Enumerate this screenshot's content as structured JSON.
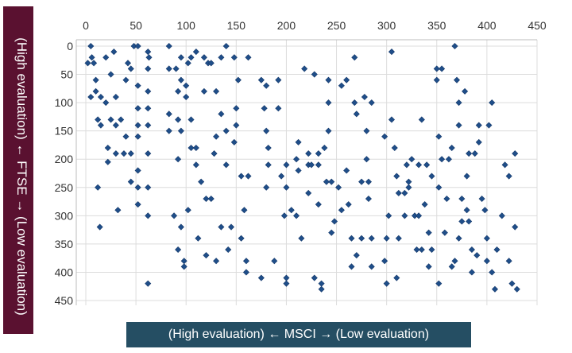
{
  "chart_data": {
    "type": "scatter",
    "title": "",
    "xlabel": "(High evaluation)  ←  MSCI  →  (Low evaluation)",
    "ylabel": "(High evaluation)  ←  FTSE  →  (Low evaluation)",
    "xlim": [
      0,
      450
    ],
    "ylim": [
      0,
      450
    ],
    "y_inverted": true,
    "grid": true,
    "x_ticks": [
      "0",
      "50",
      "100",
      "150",
      "200",
      "250",
      "300",
      "350",
      "400",
      "450"
    ],
    "y_ticks": [
      "0",
      "50",
      "100",
      "150",
      "200",
      "250",
      "300",
      "350",
      "400",
      "450"
    ],
    "marker_color": "#1f4e89",
    "series": [
      {
        "points": [
          [
            2,
            30
          ],
          [
            5,
            0
          ],
          [
            5,
            90
          ],
          [
            6,
            20
          ],
          [
            8,
            30
          ],
          [
            10,
            60
          ],
          [
            10,
            80
          ],
          [
            12,
            250
          ],
          [
            12,
            130
          ],
          [
            14,
            320
          ],
          [
            15,
            140
          ],
          [
            15,
            90
          ],
          [
            20,
            20
          ],
          [
            20,
            100
          ],
          [
            22,
            205
          ],
          [
            22,
            180
          ],
          [
            25,
            50
          ],
          [
            25,
            130
          ],
          [
            28,
            10
          ],
          [
            30,
            90
          ],
          [
            30,
            140
          ],
          [
            30,
            190
          ],
          [
            32,
            290
          ],
          [
            35,
            130
          ],
          [
            38,
            190
          ],
          [
            40,
            160
          ],
          [
            40,
            60
          ],
          [
            42,
            30
          ],
          [
            45,
            40
          ],
          [
            45,
            190
          ],
          [
            45,
            240
          ],
          [
            48,
            0
          ],
          [
            52,
            70
          ],
          [
            52,
            110
          ],
          [
            52,
            140
          ],
          [
            52,
            160
          ],
          [
            52,
            280
          ],
          [
            52,
            220
          ],
          [
            52,
            250
          ],
          [
            52,
            0
          ],
          [
            62,
            10
          ],
          [
            62,
            40
          ],
          [
            62,
            80
          ],
          [
            62,
            110
          ],
          [
            62,
            140
          ],
          [
            62,
            190
          ],
          [
            62,
            250
          ],
          [
            62,
            300
          ],
          [
            62,
            420
          ],
          [
            63,
            20
          ],
          [
            83,
            0
          ],
          [
            83,
            40
          ],
          [
            83,
            120
          ],
          [
            83,
            150
          ],
          [
            88,
            300
          ],
          [
            90,
            40
          ],
          [
            92,
            80
          ],
          [
            92,
            130
          ],
          [
            92,
            200
          ],
          [
            92,
            360
          ],
          [
            95,
            20
          ],
          [
            95,
            60
          ],
          [
            95,
            150
          ],
          [
            95,
            320
          ],
          [
            98,
            380
          ],
          [
            98,
            390
          ],
          [
            100,
            70
          ],
          [
            100,
            90
          ],
          [
            102,
            30
          ],
          [
            102,
            290
          ],
          [
            105,
            20
          ],
          [
            105,
            130
          ],
          [
            105,
            180
          ],
          [
            110,
            10
          ],
          [
            110,
            180
          ],
          [
            110,
            210
          ],
          [
            112,
            340
          ],
          [
            115,
            240
          ],
          [
            118,
            20
          ],
          [
            118,
            80
          ],
          [
            120,
            270
          ],
          [
            120,
            370
          ],
          [
            122,
            30
          ],
          [
            125,
            30
          ],
          [
            125,
            270
          ],
          [
            128,
            190
          ],
          [
            130,
            80
          ],
          [
            130,
            160
          ],
          [
            130,
            380
          ],
          [
            135,
            20
          ],
          [
            135,
            120
          ],
          [
            135,
            320
          ],
          [
            140,
            0
          ],
          [
            140,
            150
          ],
          [
            140,
            210
          ],
          [
            142,
            360
          ],
          [
            145,
            320
          ],
          [
            148,
            20
          ],
          [
            148,
            170
          ],
          [
            150,
            110
          ],
          [
            150,
            140
          ],
          [
            152,
            60
          ],
          [
            155,
            230
          ],
          [
            155,
            340
          ],
          [
            158,
            290
          ],
          [
            160,
            380
          ],
          [
            160,
            400
          ],
          [
            162,
            20
          ],
          [
            162,
            230
          ],
          [
            175,
            60
          ],
          [
            175,
            410
          ],
          [
            178,
            110
          ],
          [
            180,
            70
          ],
          [
            180,
            150
          ],
          [
            180,
            250
          ],
          [
            182,
            180
          ],
          [
            182,
            210
          ],
          [
            188,
            380
          ],
          [
            192,
            60
          ],
          [
            192,
            110
          ],
          [
            195,
            230
          ],
          [
            198,
            300
          ],
          [
            200,
            210
          ],
          [
            200,
            250
          ],
          [
            200,
            410
          ],
          [
            200,
            420
          ],
          [
            205,
            290
          ],
          [
            210,
            200
          ],
          [
            210,
            300
          ],
          [
            212,
            170
          ],
          [
            212,
            220
          ],
          [
            215,
            340
          ],
          [
            218,
            40
          ],
          [
            222,
            190
          ],
          [
            222,
            210
          ],
          [
            222,
            260
          ],
          [
            225,
            210
          ],
          [
            228,
            50
          ],
          [
            228,
            410
          ],
          [
            232,
            190
          ],
          [
            232,
            210
          ],
          [
            232,
            280
          ],
          [
            235,
            420
          ],
          [
            235,
            430
          ],
          [
            238,
            180
          ],
          [
            240,
            240
          ],
          [
            242,
            150
          ],
          [
            242,
            60
          ],
          [
            242,
            100
          ],
          [
            245,
            330
          ],
          [
            245,
            240
          ],
          [
            248,
            310
          ],
          [
            252,
            250
          ],
          [
            255,
            70
          ],
          [
            255,
            290
          ],
          [
            260,
            60
          ],
          [
            260,
            220
          ],
          [
            262,
            280
          ],
          [
            265,
            340
          ],
          [
            265,
            390
          ],
          [
            268,
            100
          ],
          [
            268,
            20
          ],
          [
            270,
            120
          ],
          [
            270,
            370
          ],
          [
            275,
            240
          ],
          [
            275,
            340
          ],
          [
            278,
            90
          ],
          [
            280,
            150
          ],
          [
            280,
            200
          ],
          [
            282,
            240
          ],
          [
            282,
            270
          ],
          [
            285,
            100
          ],
          [
            285,
            340
          ],
          [
            285,
            390
          ],
          [
            298,
            160
          ],
          [
            298,
            380
          ],
          [
            300,
            340
          ],
          [
            300,
            420
          ],
          [
            302,
            300
          ],
          [
            305,
            10
          ],
          [
            305,
            130
          ],
          [
            308,
            180
          ],
          [
            310,
            230
          ],
          [
            310,
            410
          ],
          [
            312,
            260
          ],
          [
            312,
            340
          ],
          [
            318,
            260
          ],
          [
            318,
            300
          ],
          [
            320,
            210
          ],
          [
            322,
            240
          ],
          [
            322,
            250
          ],
          [
            325,
            200
          ],
          [
            328,
            300
          ],
          [
            330,
            360
          ],
          [
            332,
            210
          ],
          [
            332,
            300
          ],
          [
            335,
            130
          ],
          [
            335,
            360
          ],
          [
            338,
            280
          ],
          [
            340,
            210
          ],
          [
            342,
            330
          ],
          [
            342,
            390
          ],
          [
            345,
            360
          ],
          [
            345,
            230
          ],
          [
            350,
            40
          ],
          [
            350,
            60
          ],
          [
            352,
            160
          ],
          [
            352,
            250
          ],
          [
            352,
            420
          ],
          [
            355,
            40
          ],
          [
            355,
            200
          ],
          [
            358,
            330
          ],
          [
            360,
            270
          ],
          [
            362,
            200
          ],
          [
            365,
            180
          ],
          [
            365,
            390
          ],
          [
            368,
            0
          ],
          [
            368,
            380
          ],
          [
            370,
            60
          ],
          [
            372,
            100
          ],
          [
            372,
            140
          ],
          [
            372,
            340
          ],
          [
            375,
            270
          ],
          [
            375,
            310
          ],
          [
            378,
            80
          ],
          [
            380,
            230
          ],
          [
            380,
            290
          ],
          [
            382,
            190
          ],
          [
            382,
            310
          ],
          [
            385,
            400
          ],
          [
            385,
            360
          ],
          [
            388,
            190
          ],
          [
            390,
            370
          ],
          [
            392,
            140
          ],
          [
            392,
            170
          ],
          [
            395,
            270
          ],
          [
            398,
            290
          ],
          [
            400,
            340
          ],
          [
            400,
            380
          ],
          [
            402,
            140
          ],
          [
            405,
            100
          ],
          [
            405,
            400
          ],
          [
            408,
            430
          ],
          [
            410,
            360
          ],
          [
            415,
            300
          ],
          [
            418,
            210
          ],
          [
            422,
            380
          ],
          [
            422,
            230
          ],
          [
            425,
            420
          ],
          [
            428,
            190
          ],
          [
            428,
            320
          ],
          [
            430,
            430
          ]
        ]
      }
    ]
  }
}
